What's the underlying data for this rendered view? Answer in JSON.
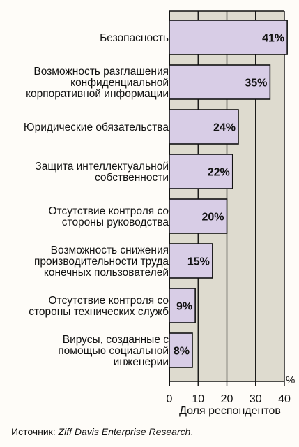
{
  "chart_data": {
    "type": "bar",
    "orientation": "horizontal",
    "categories": [
      "Безопасность",
      "Возможность разглашения\nконфиденциальной\nкорпоративной информации",
      "Юридические обязательства",
      "Защита интеллектуальной\nсобственности",
      "Отсутствие контроля со\nстороны руководства",
      "Возможность снижения\nпроизводительности труда\nконечных пользователей",
      "Отсутствие контроля со\nстороны технических служб",
      "Вирусы, созданные с\nпомощью социальной\nинженерии"
    ],
    "values": [
      41,
      35,
      24,
      22,
      20,
      15,
      9,
      8
    ],
    "data_labels": [
      "41%",
      "35%",
      "24%",
      "22%",
      "20%",
      "15%",
      "9%",
      "8%"
    ],
    "xlim": [
      0,
      40
    ],
    "xticks": [
      "0",
      "10",
      "20",
      "30",
      "40"
    ],
    "xlabel": "Доля респондентов",
    "unit": "%",
    "grid": true,
    "colors": {
      "bar": "#d8cde6",
      "plot_bg": "#dedbcf",
      "border": "#111111"
    }
  },
  "source": {
    "prefix": "Источник: ",
    "name": "Ziff Davis Enterprise Research",
    "suffix": "."
  }
}
